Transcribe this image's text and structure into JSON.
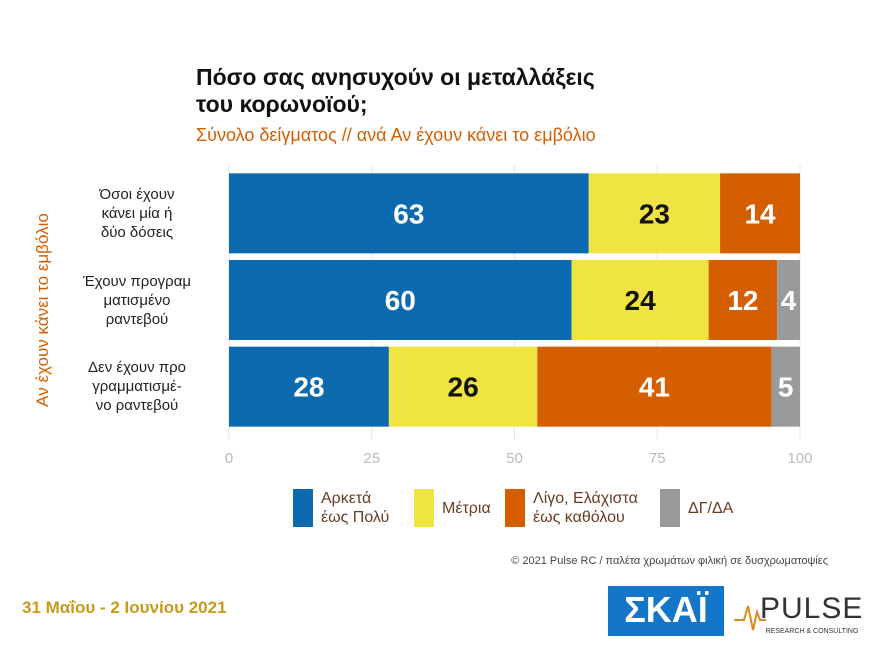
{
  "chart_data": {
    "type": "stacked-barh",
    "title": "Πόσο σας ανησυχούν οι μεταλλάξεις\nτου κορωνοϊού;",
    "subtitle": "Σύνολο δείγματος // ανά Αν έχουν κάνει το εμβόλιο",
    "y_label": "Αν έχουν κάνει το εμβόλιο",
    "categories": [
      "Όσοι έχουν\nκάνει μία ή\nδύο δόσεις",
      "Έχουν προγραμ\nματισμένο\nραντεβού",
      "Δεν έχουν προ\nγραμματισμέ-\nνο ραντεβού"
    ],
    "series": [
      {
        "name": "Αρκετά\nέως Πολύ",
        "color": "#0a6aad",
        "values": [
          63,
          60,
          28
        ]
      },
      {
        "name": "Μέτρια",
        "color": "#f0e442",
        "values": [
          23,
          24,
          26
        ]
      },
      {
        "name": "Λίγο, Ελάχιστα\nέως καθόλου",
        "color": "#d55e00",
        "values": [
          14,
          12,
          41
        ]
      },
      {
        "name": "ΔΓ/ΔΑ",
        "color": "#9a9a9a",
        "values": [
          0,
          4,
          5
        ]
      }
    ],
    "xlim": [
      0,
      100
    ],
    "xticks": [
      0,
      25,
      50,
      75,
      100
    ],
    "grid": true,
    "legend": "bottom"
  },
  "footer": {
    "copyright": "© 2021 Pulse RC  /  παλέτα χρωμάτων φιλική σε δυσχρωματοψίες",
    "date": "31 Μαΐου - 2 Ιουνίου 2021"
  },
  "logos": {
    "skai": "ΣΚΑΪ",
    "pulse": "PULSE",
    "pulse_sub": "RESEARCH & CONSULTING"
  }
}
